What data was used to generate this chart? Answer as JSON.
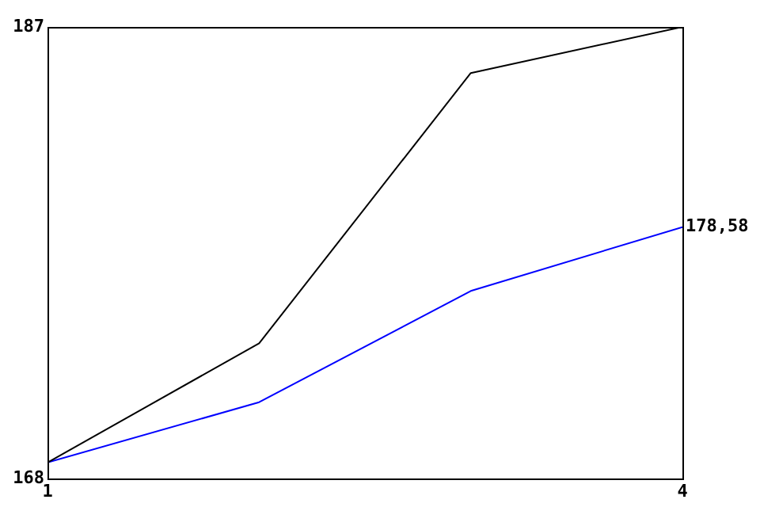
{
  "chart_data": {
    "type": "line",
    "x": [
      1,
      2,
      3,
      4
    ],
    "xlim": [
      1,
      4
    ],
    "xticks": [
      1,
      4
    ],
    "ylim": [
      168,
      187
    ],
    "yticks": [
      168,
      187
    ],
    "grid": false,
    "legend": false,
    "marker": "none",
    "line_style": "solid",
    "series": [
      {
        "color": "#000000",
        "values": [
          168.67,
          173.69,
          185.06,
          187
        ]
      },
      {
        "color": "#0000ff",
        "values": [
          168.67,
          171.21,
          175.89,
          178.58
        ],
        "value_labels": [
          null,
          null,
          null,
          "178,58"
        ]
      }
    ]
  }
}
